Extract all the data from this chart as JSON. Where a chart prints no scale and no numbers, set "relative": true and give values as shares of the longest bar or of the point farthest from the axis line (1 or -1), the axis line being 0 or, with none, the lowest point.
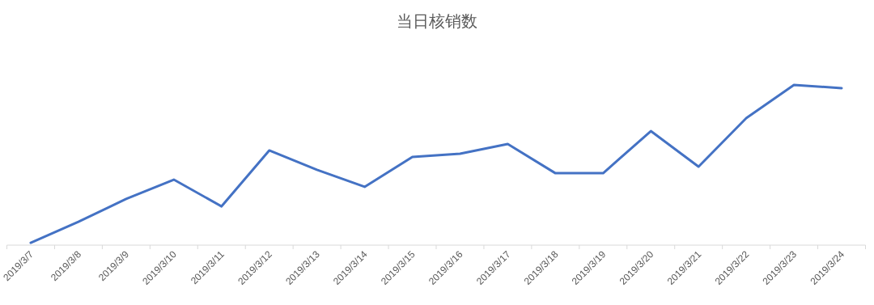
{
  "chart_data": {
    "type": "line",
    "title": "当日核销数",
    "relative": true,
    "categories": [
      "2019/3/7",
      "2019/3/8",
      "2019/3/9",
      "2019/3/10",
      "2019/3/11",
      "2019/3/12",
      "2019/3/13",
      "2019/3/14",
      "2019/3/15",
      "2019/3/16",
      "2019/3/17",
      "2019/3/18",
      "2019/3/19",
      "2019/3/20",
      "2019/3/21",
      "2019/3/22",
      "2019/3/23",
      "2019/3/24"
    ],
    "series": [
      {
        "color": "#4472c4",
        "values": [
          0.015,
          0.146,
          0.288,
          0.409,
          0.242,
          0.591,
          0.47,
          0.364,
          0.551,
          0.571,
          0.631,
          0.449,
          0.449,
          0.712,
          0.49,
          0.793,
          1,
          0.98
        ]
      }
    ]
  }
}
